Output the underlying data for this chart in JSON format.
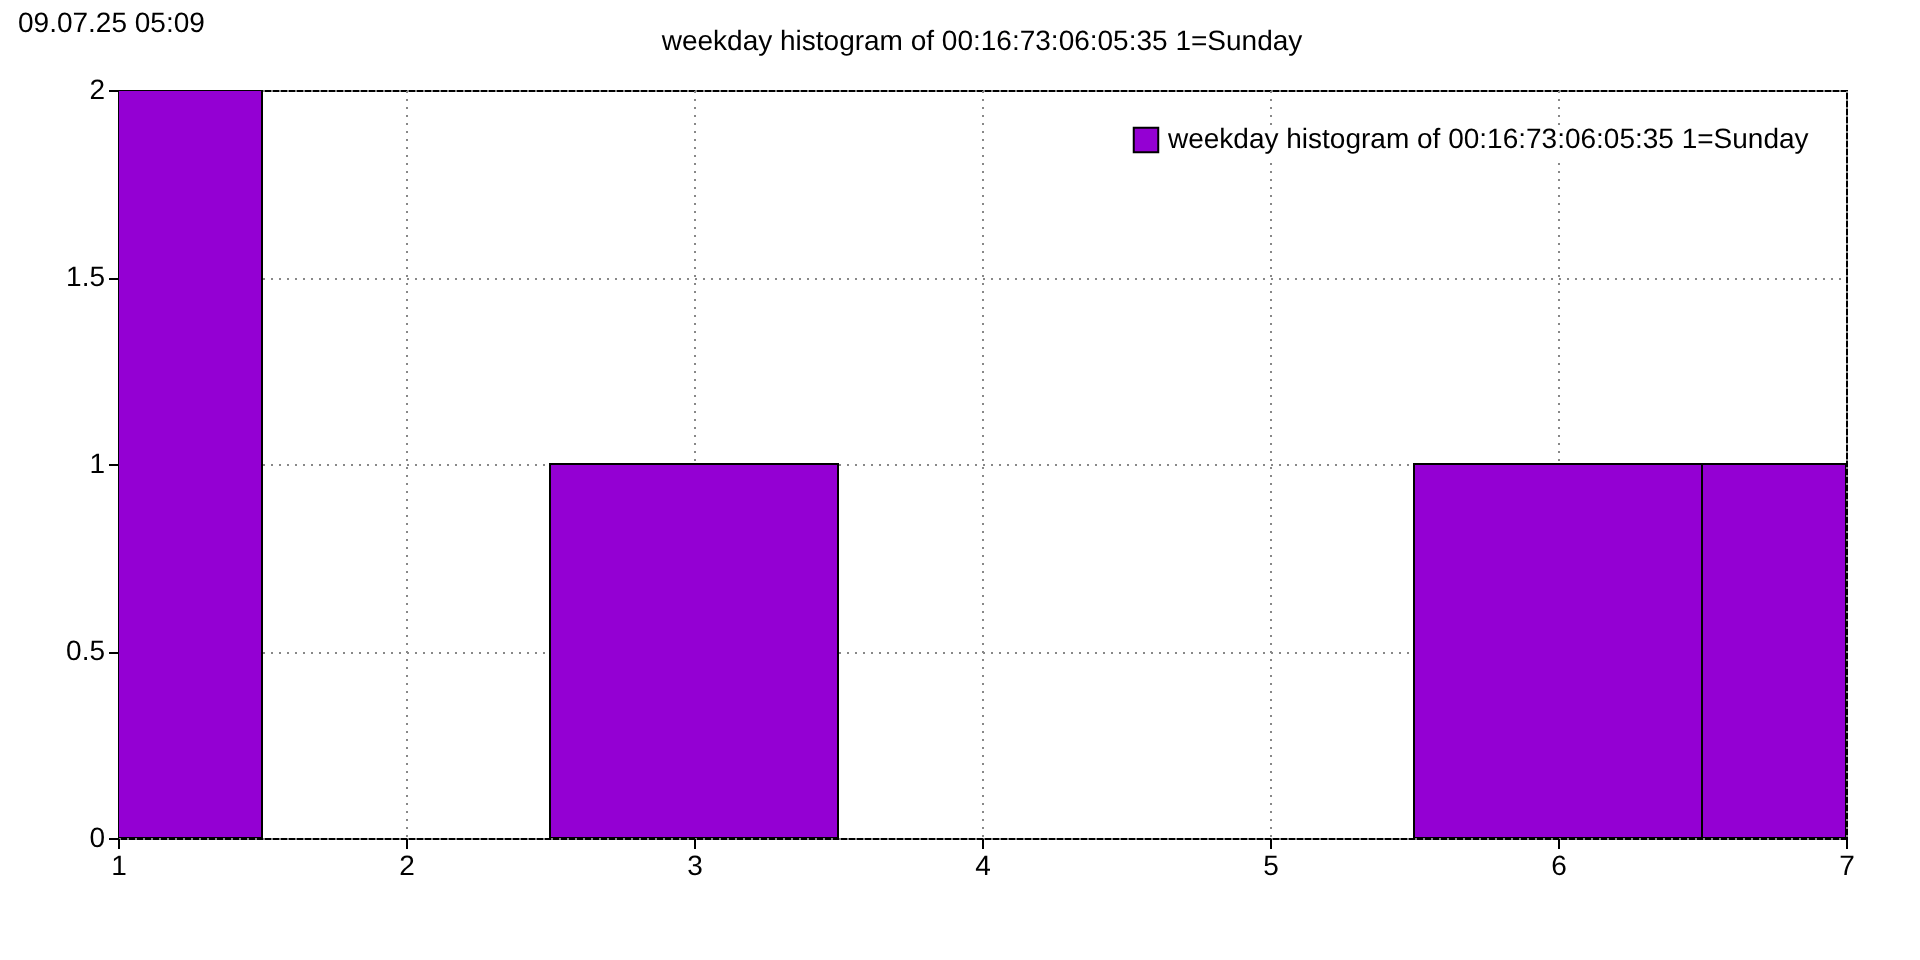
{
  "chart_data": {
    "type": "histogram",
    "title": "weekday histogram of 00:16:73:06:05:35 1=Sunday",
    "annotations": [
      "09.07.25 05:09"
    ],
    "bins": [
      1,
      1.5,
      2.5,
      3.5,
      5.5,
      6.5,
      7
    ],
    "series": [
      {
        "name": "weekday histogram of 00:16:73:06:05:35 1=Sunday",
        "color": "#9400d3",
        "values": [
          2,
          0,
          1,
          0,
          1,
          1
        ]
      }
    ],
    "xlim": [
      1,
      7
    ],
    "xticks": [
      1,
      2,
      3,
      4,
      5,
      6,
      7
    ],
    "ylim": [
      0,
      2
    ],
    "yticks": [
      0,
      0.5,
      1,
      1.5,
      2
    ],
    "grid": true,
    "legend": "top right"
  }
}
